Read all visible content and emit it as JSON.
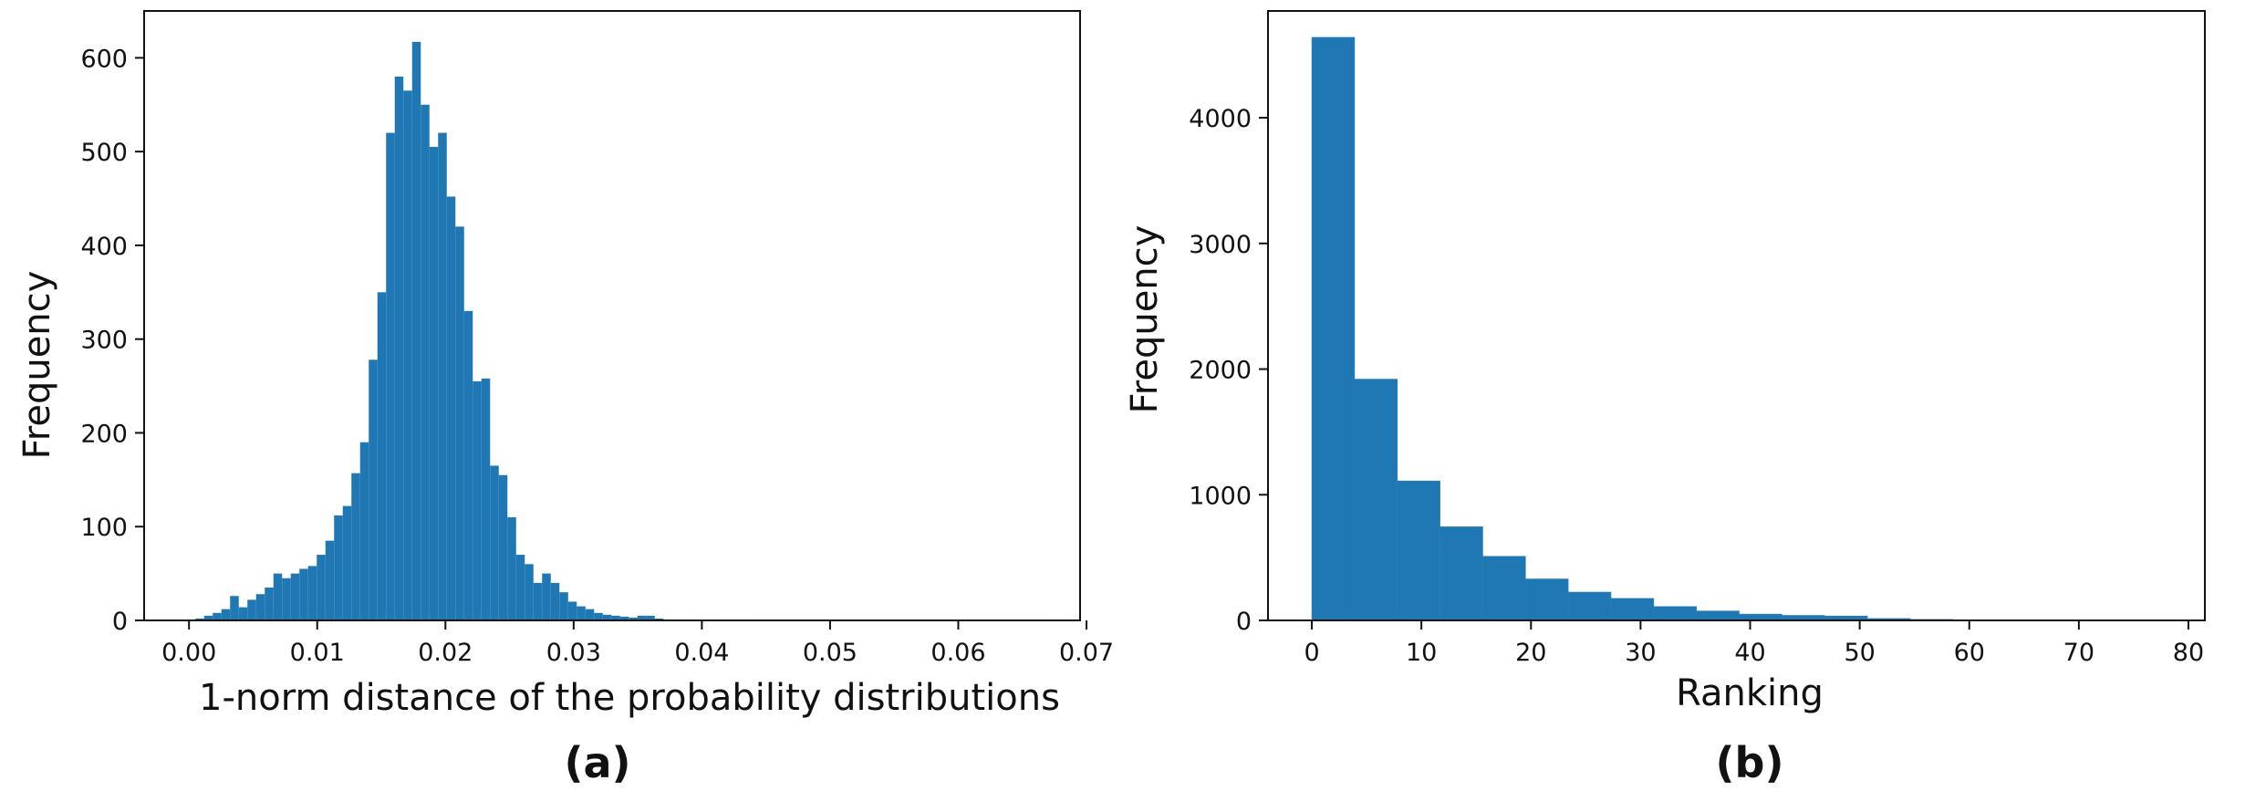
{
  "chart_data": [
    {
      "type": "bar",
      "subtype": "histogram",
      "panel_label": "(a)",
      "xlabel": "1-norm distance of the probability distributions",
      "ylabel": "Frequency",
      "xlim": [
        -0.0035,
        0.0695
      ],
      "ylim": [
        0,
        650
      ],
      "xticks": [
        0.0,
        0.01,
        0.02,
        0.03,
        0.04,
        0.05,
        0.06,
        0.07
      ],
      "xtick_labels": [
        "0.00",
        "0.01",
        "0.02",
        "0.03",
        "0.04",
        "0.05",
        "0.06",
        "0.07"
      ],
      "yticks": [
        0,
        100,
        200,
        300,
        400,
        500,
        600
      ],
      "ytick_labels": [
        "0",
        "100",
        "200",
        "300",
        "400",
        "500",
        "600"
      ],
      "bin_start": 0.0005,
      "bin_width": 0.000676,
      "values": [
        2,
        5,
        8,
        12,
        26,
        14,
        22,
        28,
        35,
        50,
        45,
        50,
        55,
        58,
        70,
        85,
        112,
        122,
        157,
        190,
        278,
        350,
        520,
        580,
        565,
        617,
        550,
        505,
        520,
        452,
        420,
        330,
        255,
        258,
        165,
        155,
        110,
        70,
        60,
        40,
        50,
        40,
        30,
        20,
        15,
        12,
        8,
        6,
        5,
        4,
        3,
        5,
        5,
        2,
        1,
        1,
        1,
        0,
        0,
        0,
        0,
        1,
        1,
        1,
        0,
        0,
        0,
        0,
        0,
        0,
        0,
        0,
        0,
        0,
        0,
        0,
        0,
        0,
        0,
        0,
        0,
        0,
        0,
        0,
        0,
        0,
        0,
        0,
        0,
        0,
        0,
        0,
        0,
        0,
        0,
        0,
        0,
        0,
        0,
        1
      ],
      "color": "#1f77b4",
      "grid": false
    },
    {
      "type": "bar",
      "subtype": "histogram",
      "panel_label": "(b)",
      "xlabel": "Ranking",
      "ylabel": "Frequency",
      "xlim": [
        -4,
        81.5
      ],
      "ylim": [
        0,
        4850
      ],
      "xticks": [
        0,
        10,
        20,
        30,
        40,
        50,
        60,
        70,
        80
      ],
      "xtick_labels": [
        "0",
        "10",
        "20",
        "30",
        "40",
        "50",
        "60",
        "70",
        "80"
      ],
      "yticks": [
        0,
        1000,
        2000,
        3000,
        4000
      ],
      "ytick_labels": [
        "0",
        "1000",
        "2000",
        "3000",
        "4000"
      ],
      "bin_start": 0,
      "bin_width": 3.9,
      "values": [
        4640,
        1920,
        1110,
        745,
        510,
        330,
        225,
        175,
        110,
        75,
        50,
        40,
        35,
        15,
        8,
        5,
        3,
        2,
        1,
        2
      ],
      "color": "#1f77b4",
      "grid": false
    }
  ]
}
